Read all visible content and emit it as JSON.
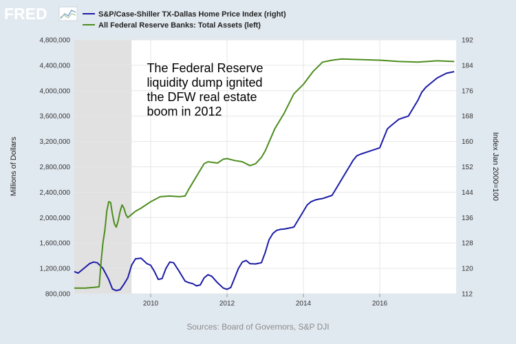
{
  "logo": {
    "text": "FRED"
  },
  "chart_data": {
    "type": "line",
    "title": "",
    "xlabel": "",
    "ylabel_left": "Millions of Dollars",
    "ylabel_right": "Index Jan 2000=100",
    "x_range": [
      2008.0,
      2018.0
    ],
    "x_ticks": [
      2010,
      2012,
      2014,
      2016
    ],
    "x_tick_labels": [
      "2010",
      "2012",
      "2014",
      "2016"
    ],
    "y_left_range": [
      800000,
      4800000
    ],
    "y_left_ticks": [
      800000,
      1200000,
      1600000,
      2000000,
      2400000,
      2800000,
      3200000,
      3600000,
      4000000,
      4400000,
      4800000
    ],
    "y_left_tick_labels": [
      "800,000",
      "1,200,000",
      "1,600,000",
      "2,000,000",
      "2,400,000",
      "2,800,000",
      "3,200,000",
      "3,600,000",
      "4,000,000",
      "4,400,000",
      "4,800,000"
    ],
    "y_right_range": [
      112,
      192
    ],
    "y_right_ticks": [
      112,
      120,
      128,
      136,
      144,
      152,
      160,
      168,
      176,
      184,
      192
    ],
    "y_right_tick_labels": [
      "112",
      "120",
      "128",
      "136",
      "144",
      "152",
      "160",
      "168",
      "176",
      "184",
      "192"
    ],
    "grid": true,
    "legend_position": "top-left",
    "recession_shading": [
      [
        2008.0,
        2009.5
      ]
    ],
    "annotation": {
      "lines": [
        "The Federal Reserve",
        "liquidity dump ignited",
        "the DFW real estate",
        "boom in 2012"
      ],
      "x": 2009.9,
      "y_left": 4400000
    },
    "series": [
      {
        "name": "S&P/Case-Shiller TX-Dallas Home Price Index (right)",
        "axis": "right",
        "color": "#1a1aa6",
        "x": [
          2008.0,
          2008.1,
          2008.25,
          2008.4,
          2008.5,
          2008.6,
          2008.75,
          2008.9,
          2009.0,
          2009.1,
          2009.2,
          2009.3,
          2009.4,
          2009.5,
          2009.6,
          2009.75,
          2009.9,
          2010.0,
          2010.1,
          2010.2,
          2010.3,
          2010.4,
          2010.5,
          2010.6,
          2010.75,
          2010.9,
          2011.0,
          2011.1,
          2011.2,
          2011.3,
          2011.4,
          2011.5,
          2011.6,
          2011.75,
          2011.9,
          2012.0,
          2012.1,
          2012.2,
          2012.3,
          2012.4,
          2012.5,
          2012.6,
          2012.75,
          2012.9,
          2013.0,
          2013.1,
          2013.2,
          2013.3,
          2013.4,
          2013.5,
          2013.75,
          2014.0,
          2014.1,
          2014.2,
          2014.3,
          2014.4,
          2014.5,
          2014.75,
          2015.0,
          2015.1,
          2015.2,
          2015.3,
          2015.4,
          2015.5,
          2015.75,
          2016.0,
          2016.1,
          2016.2,
          2016.3,
          2016.4,
          2016.5,
          2016.75,
          2017.0,
          2017.1,
          2017.2,
          2017.3,
          2017.4,
          2017.5,
          2017.75,
          2017.95
        ],
        "values": [
          119.0,
          118.5,
          120.0,
          121.5,
          122.0,
          121.8,
          120.0,
          116.5,
          113.5,
          113.0,
          113.3,
          115.0,
          117.0,
          121.0,
          123.0,
          123.2,
          121.5,
          121.0,
          119.0,
          116.5,
          116.8,
          120.0,
          122.0,
          121.8,
          119.0,
          116.0,
          115.5,
          115.2,
          114.5,
          114.8,
          117.0,
          118.0,
          117.5,
          115.5,
          113.8,
          113.4,
          114.0,
          117.0,
          120.0,
          122.0,
          122.5,
          121.5,
          121.4,
          121.8,
          125.0,
          129.0,
          131.0,
          132.0,
          132.3,
          132.4,
          133.0,
          138.0,
          140.0,
          141.0,
          141.5,
          141.8,
          142.0,
          143.0,
          148.0,
          150.0,
          152.0,
          154.0,
          155.5,
          156.0,
          157.0,
          158.0,
          161.0,
          164.0,
          165.0,
          166.0,
          167.0,
          168.0,
          173.0,
          175.5,
          177.0,
          178.0,
          179.0,
          180.0,
          181.5,
          182.0
        ]
      },
      {
        "name": "All Federal Reserve Banks: Total Assets (left)",
        "axis": "left",
        "color": "#4c8c1c",
        "x": [
          2008.0,
          2008.3,
          2008.5,
          2008.65,
          2008.7,
          2008.75,
          2008.8,
          2008.85,
          2008.9,
          2008.95,
          2009.0,
          2009.05,
          2009.1,
          2009.15,
          2009.2,
          2009.25,
          2009.3,
          2009.35,
          2009.4,
          2009.5,
          2009.6,
          2009.75,
          2010.0,
          2010.25,
          2010.5,
          2010.75,
          2010.9,
          2011.0,
          2011.2,
          2011.4,
          2011.5,
          2011.75,
          2011.9,
          2012.0,
          2012.2,
          2012.4,
          2012.6,
          2012.75,
          2012.9,
          2013.0,
          2013.25,
          2013.5,
          2013.75,
          2014.0,
          2014.25,
          2014.5,
          2014.75,
          2015.0,
          2015.5,
          2016.0,
          2016.5,
          2017.0,
          2017.5,
          2017.95
        ],
        "values": [
          890000,
          890000,
          900000,
          910000,
          1300000,
          1600000,
          1800000,
          2100000,
          2250000,
          2240000,
          2050000,
          1900000,
          1850000,
          1950000,
          2100000,
          2200000,
          2150000,
          2050000,
          2000000,
          2050000,
          2100000,
          2150000,
          2250000,
          2330000,
          2340000,
          2330000,
          2340000,
          2450000,
          2650000,
          2850000,
          2880000,
          2860000,
          2920000,
          2930000,
          2900000,
          2880000,
          2820000,
          2850000,
          2950000,
          3050000,
          3400000,
          3650000,
          3950000,
          4100000,
          4300000,
          4450000,
          4480000,
          4500000,
          4490000,
          4480000,
          4460000,
          4450000,
          4470000,
          4460000
        ]
      }
    ]
  },
  "source": "Sources: Board of Governors, S&P DJI"
}
